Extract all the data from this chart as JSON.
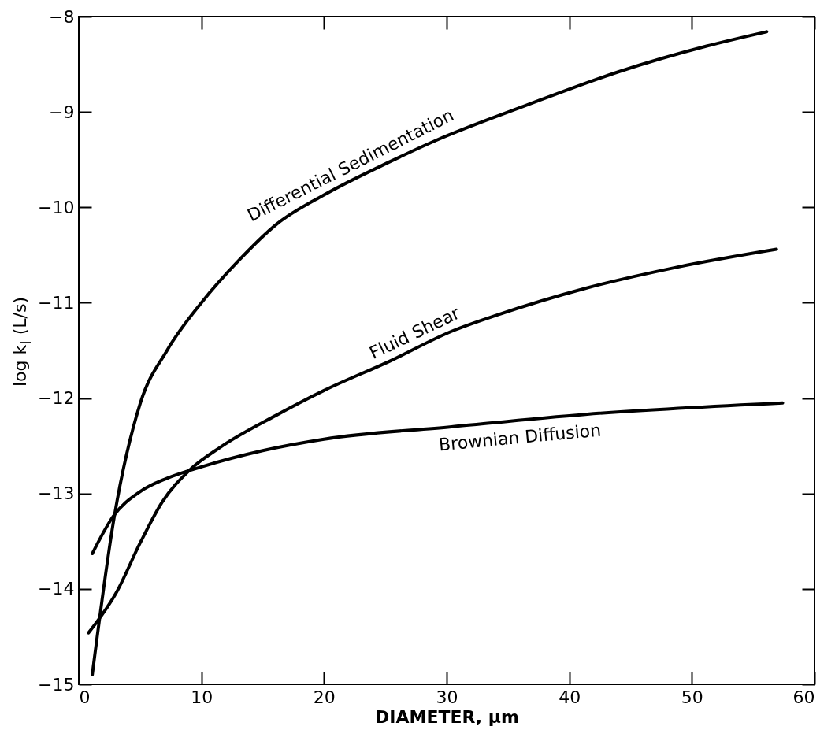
{
  "chart_data": {
    "type": "line",
    "xlabel": "DIAMETER,  μm",
    "ylabel": "log k$_{I}$  (L/s)",
    "xlim": [
      0,
      60
    ],
    "ylim": [
      -15,
      -8
    ],
    "xticks": [
      0,
      10,
      20,
      30,
      40,
      50,
      60
    ],
    "yticks": [
      -15,
      -14,
      -13,
      -12,
      -11,
      -10,
      -9,
      -8
    ],
    "series": [
      {
        "name": "Differential Sedimentation",
        "color": "#000000",
        "x": [
          1.1,
          2.9,
          5.0,
          7.2,
          10,
          13.1,
          16.1,
          20,
          25.4,
          29.1,
          36.5,
          44,
          51.2,
          56.1
        ],
        "values": [
          -14.9,
          -13.24,
          -12.06,
          -11.5,
          -11.0,
          -10.55,
          -10.18,
          -9.87,
          -9.52,
          -9.3,
          -8.93,
          -8.58,
          -8.31,
          -8.16
        ]
      },
      {
        "name": "Fluid Shear",
        "color": "#000000",
        "x": [
          0.8,
          3.1,
          5.0,
          6.8,
          9.0,
          11.6,
          16.1,
          20,
          25.4,
          30.4,
          34.1,
          41.3,
          48.7,
          56.9
        ],
        "values": [
          -14.46,
          -14.03,
          -13.52,
          -13.09,
          -12.76,
          -12.51,
          -12.18,
          -11.92,
          -11.61,
          -11.3,
          -11.13,
          -10.85,
          -10.63,
          -10.44
        ]
      },
      {
        "name": "Brownian Diffusion",
        "color": "#000000",
        "x": [
          1.1,
          2.8,
          5.0,
          7.2,
          10,
          15,
          20,
          30.4,
          41.3,
          57.4
        ],
        "values": [
          -13.63,
          -13.24,
          -12.98,
          -12.84,
          -12.72,
          -12.55,
          -12.43,
          -12.3,
          -12.17,
          -12.05
        ]
      }
    ]
  }
}
